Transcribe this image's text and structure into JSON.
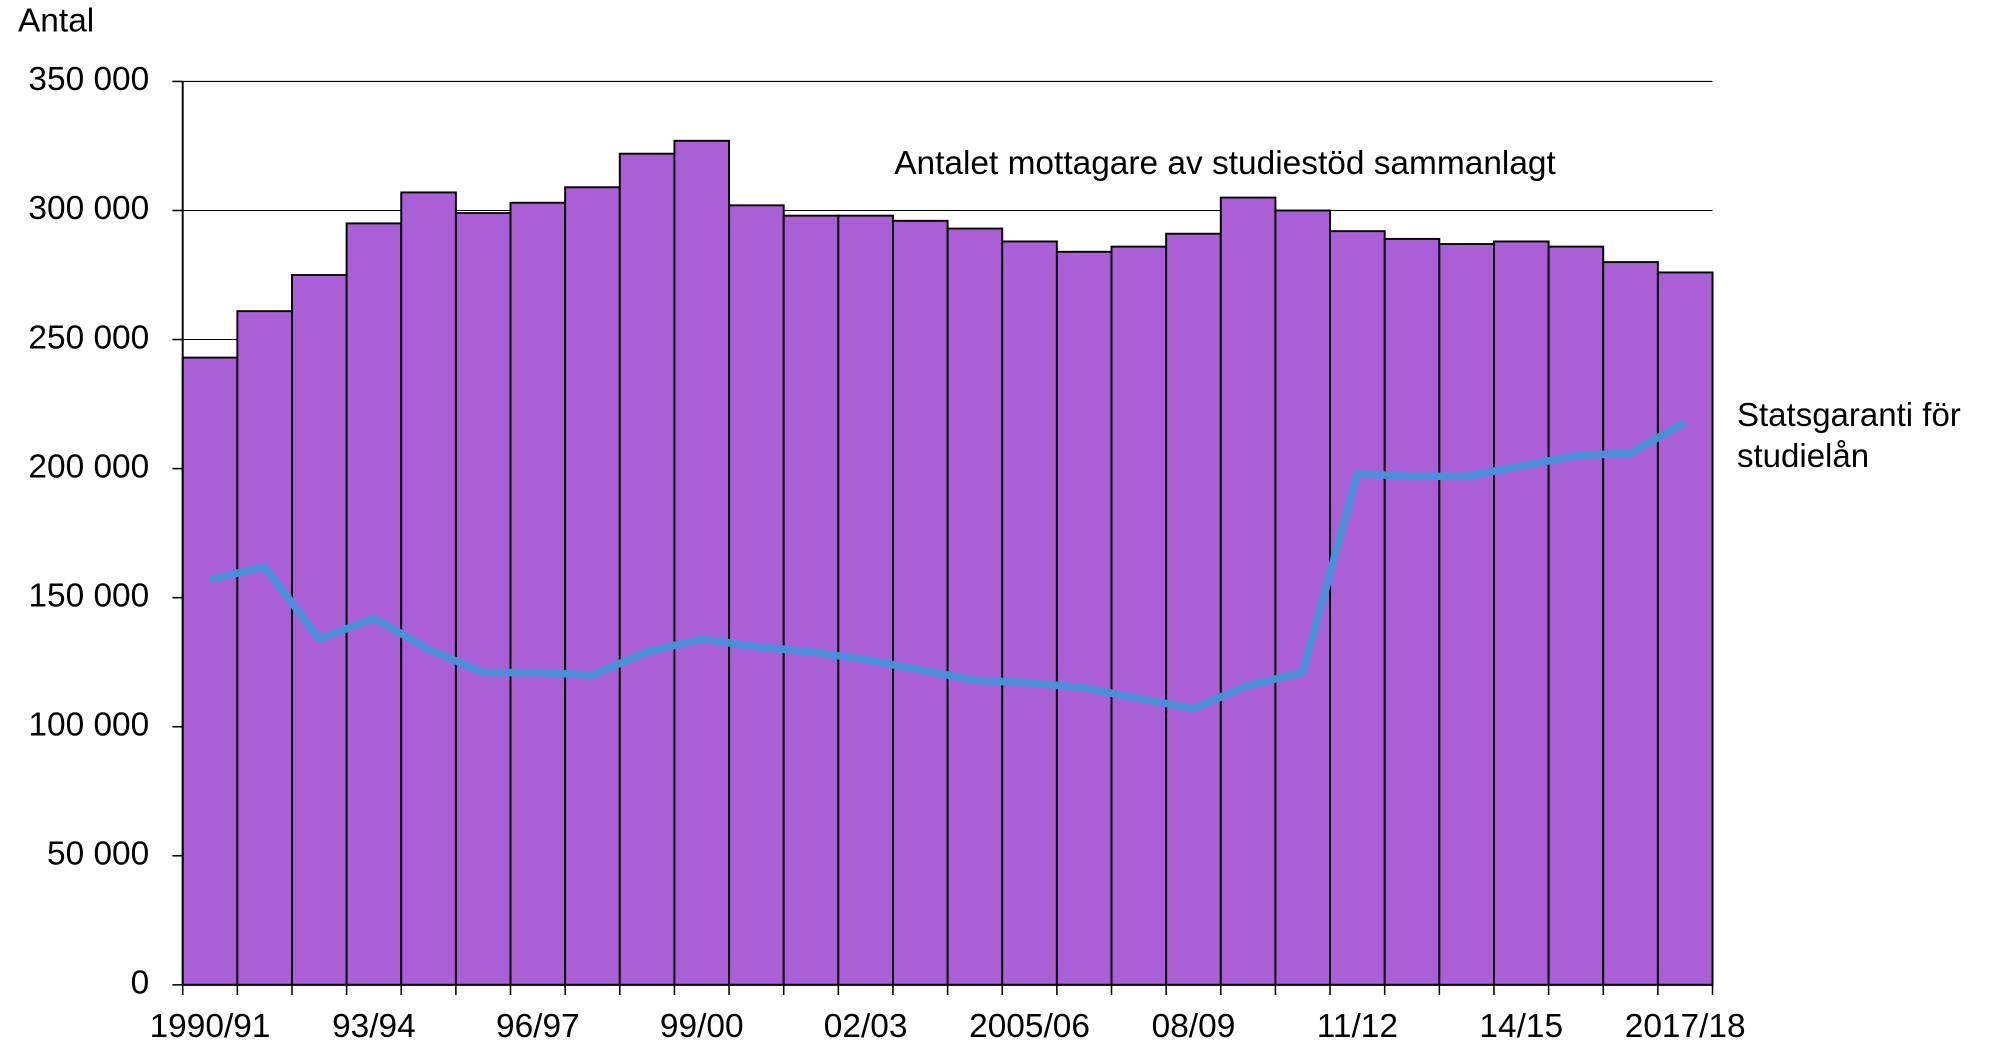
{
  "chart_data": {
    "type": "bar",
    "y_axis_label": "Antal",
    "categories": [
      "1990/91",
      null,
      null,
      "93/94",
      null,
      null,
      "96/97",
      null,
      null,
      "99/00",
      null,
      null,
      "02/03",
      null,
      null,
      "2005/06",
      null,
      null,
      "08/09",
      null,
      null,
      "11/12",
      null,
      null,
      "14/15",
      null,
      null,
      "2017/18"
    ],
    "series": [
      {
        "name": "Antalet mottagare av studiestöd sammanlagt",
        "type": "bar",
        "color": "#ab5fd6",
        "values": [
          243000,
          261000,
          275000,
          295000,
          307000,
          299000,
          303000,
          309000,
          322000,
          327000,
          302000,
          298000,
          298000,
          296000,
          293000,
          288000,
          284000,
          286000,
          291000,
          305000,
          300000,
          292000,
          289000,
          287000,
          288000,
          286000,
          280000,
          276000
        ]
      },
      {
        "name": "Statsgaranti för studielån",
        "type": "line",
        "color": "#4a8fd8",
        "values": [
          157000,
          162000,
          134000,
          142000,
          130000,
          121000,
          121000,
          120000,
          129000,
          134000,
          131000,
          129000,
          126000,
          122000,
          118000,
          117000,
          115000,
          111000,
          107000,
          116000,
          121000,
          198000,
          197000,
          197000,
          201000,
          205000,
          206000,
          218000
        ]
      }
    ],
    "ylim": [
      0,
      350000
    ],
    "yticks": [
      {
        "value": 0,
        "label": "0"
      },
      {
        "value": 50000,
        "label": "50 000"
      },
      {
        "value": 100000,
        "label": "100 000"
      },
      {
        "value": 150000,
        "label": "150 000"
      },
      {
        "value": 200000,
        "label": "200 000"
      },
      {
        "value": 250000,
        "label": "250 000"
      },
      {
        "value": 300000,
        "label": "300 000"
      },
      {
        "value": 350000,
        "label": "350 000"
      }
    ],
    "grid": true
  }
}
